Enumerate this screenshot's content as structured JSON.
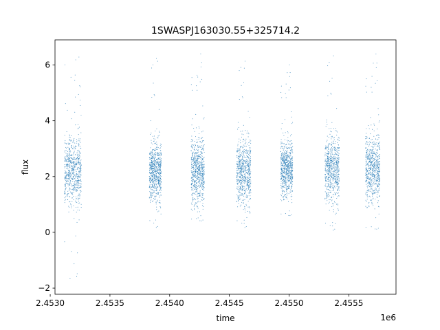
{
  "chart_data": {
    "type": "scatter",
    "title": "1SWASPJ163030.55+325714.2",
    "xlabel": "time",
    "ylabel": "flux",
    "x_offset_label": "1e6",
    "xlim": [
      2453040,
      2455895
    ],
    "ylim": [
      -2.22,
      6.9
    ],
    "grid": false,
    "x_ticks": [
      {
        "value": 2453000,
        "label": "2.4530"
      },
      {
        "value": 2453500,
        "label": "2.4535"
      },
      {
        "value": 2454000,
        "label": "2.4540"
      },
      {
        "value": 2454500,
        "label": "2.4545"
      },
      {
        "value": 2455000,
        "label": "2.4550"
      },
      {
        "value": 2455500,
        "label": "2.4555"
      }
    ],
    "y_ticks": [
      {
        "value": -2,
        "label": "−2"
      },
      {
        "value": 0,
        "label": "0"
      },
      {
        "value": 2,
        "label": "2"
      },
      {
        "value": 4,
        "label": "4"
      },
      {
        "value": 6,
        "label": "6"
      }
    ],
    "series": [
      {
        "color": "#1f77b4",
        "marker": "point",
        "observing_seasons": [
          {
            "x_range": [
              2453120,
              2453260
            ],
            "flux_center": 2.2,
            "flux_spread": 0.85,
            "flux_range": [
              -1.8,
              6.4
            ]
          },
          {
            "x_range": [
              2453830,
              2453930
            ],
            "flux_center": 2.2,
            "flux_spread": 0.7,
            "flux_range": [
              0.1,
              6.4
            ]
          },
          {
            "x_range": [
              2454180,
              2454290
            ],
            "flux_center": 2.2,
            "flux_spread": 0.85,
            "flux_range": [
              0.3,
              6.5
            ]
          },
          {
            "x_range": [
              2454560,
              2454680
            ],
            "flux_center": 2.2,
            "flux_spread": 0.8,
            "flux_range": [
              0.1,
              6.3
            ]
          },
          {
            "x_range": [
              2454930,
              2455030
            ],
            "flux_center": 2.3,
            "flux_spread": 0.7,
            "flux_range": [
              0.5,
              6.1
            ]
          },
          {
            "x_range": [
              2455300,
              2455420
            ],
            "flux_center": 2.3,
            "flux_spread": 0.8,
            "flux_range": [
              0.0,
              6.5
            ]
          },
          {
            "x_range": [
              2455640,
              2455760
            ],
            "flux_center": 2.3,
            "flux_spread": 0.85,
            "flux_range": [
              0.0,
              6.5
            ]
          }
        ]
      }
    ]
  }
}
